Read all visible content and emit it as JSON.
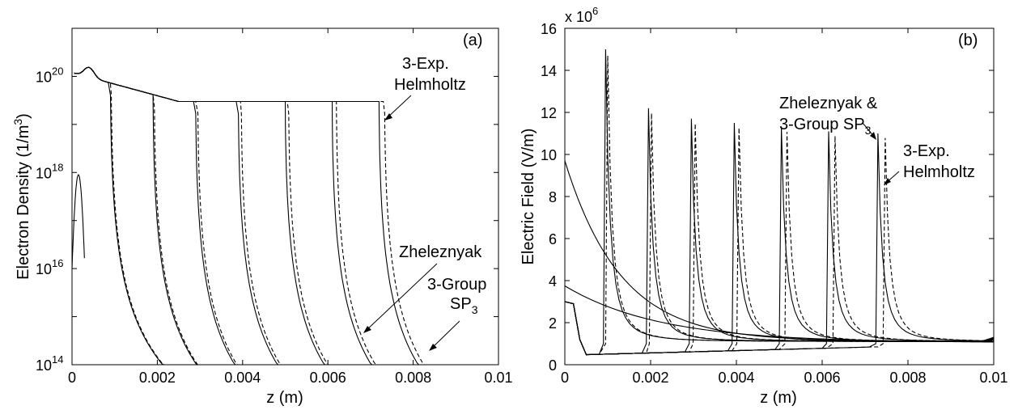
{
  "chart_data": [
    {
      "type": "line",
      "panel_label": "(a)",
      "xlabel": "z (m)",
      "ylabel": "Electron Density (1/m",
      "ylabel_sup": "3",
      "ylabel_end": ")",
      "xlim": [
        0,
        0.01
      ],
      "ylim": [
        100000000000000.0,
        1e+21
      ],
      "yscale": "log",
      "x_ticks": [
        "0",
        "0.002",
        "0.004",
        "0.006",
        "0.008",
        "0.01"
      ],
      "y_ticks": [
        "14",
        "16",
        "18",
        "20"
      ],
      "y_tick_base": "10",
      "front_positions": [
        0.0009,
        0.0019,
        0.0029,
        0.0039,
        0.005,
        0.0061,
        0.0072
      ],
      "front_positions_dashed": [
        0.00092,
        0.00193,
        0.00295,
        0.00397,
        0.00508,
        0.0062,
        0.00733
      ],
      "plateau_density_start": 1.2e+20,
      "plateau_density_end": 3e+19,
      "initial_seed_peak": 9e+17,
      "annotations": [
        {
          "lines": [
            "3-Exp.",
            "Helmholtz"
          ]
        },
        {
          "lines": [
            "Zheleznyak"
          ]
        },
        {
          "lines": [
            "3-Group",
            "SP"
          ],
          "sub": "3"
        }
      ],
      "series": [
        {
          "name": "3-Exp. Helmholtz",
          "style": "solid"
        },
        {
          "name": "Zheleznyak",
          "style": "dashed"
        },
        {
          "name": "3-Group SP3",
          "style": "dashed"
        }
      ]
    },
    {
      "type": "line",
      "panel_label": "(b)",
      "xlabel": "z (m)",
      "ylabel": "Electric Field (V/m)",
      "xlim": [
        0,
        0.01
      ],
      "ylim": [
        0,
        16
      ],
      "y_multiplier": "x 10",
      "y_multiplier_exp": "6",
      "x_ticks": [
        "0",
        "0.002",
        "0.004",
        "0.006",
        "0.008",
        "0.01"
      ],
      "y_ticks": [
        "0",
        "2",
        "4",
        "6",
        "8",
        "10",
        "12",
        "14",
        "16"
      ],
      "front_positions": [
        0.00095,
        0.00195,
        0.00295,
        0.00395,
        0.00505,
        0.00615,
        0.0073
      ],
      "peak_values": [
        15.0,
        12.2,
        11.7,
        11.5,
        11.3,
        11.1,
        11.0
      ],
      "annotations": [
        {
          "lines": [
            "Zheleznyak &",
            "3-Group SP"
          ],
          "sub": "3"
        },
        {
          "lines": [
            "3-Exp.",
            "Helmholtz"
          ]
        }
      ],
      "series": [
        {
          "name": "Zheleznyak & 3-Group SP3",
          "style": "solid"
        },
        {
          "name": "3-Exp. Helmholtz",
          "style": "dashed"
        }
      ]
    }
  ]
}
